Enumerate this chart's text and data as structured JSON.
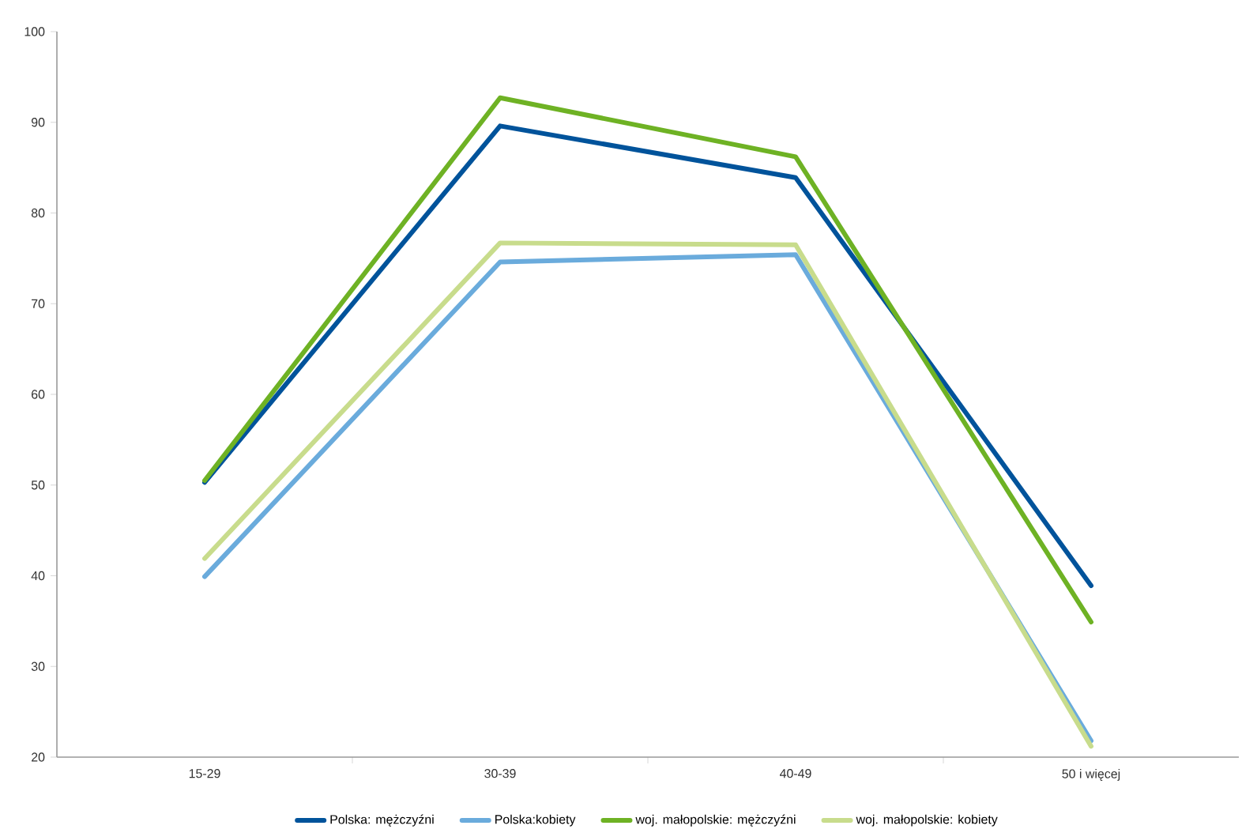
{
  "chart_data": {
    "type": "line",
    "categories": [
      "15-29",
      "30-39",
      "40-49",
      "50 i więcej"
    ],
    "series": [
      {
        "name": "Polska: mężczyźni",
        "color": "#00539b",
        "values": [
          50.3,
          89.6,
          83.9,
          38.9
        ]
      },
      {
        "name": "Polska:kobiety",
        "color": "#6aabdc",
        "values": [
          39.9,
          74.6,
          75.4,
          21.8
        ]
      },
      {
        "name": "woj. małopolskie: mężczyźni",
        "color": "#6eb224",
        "values": [
          50.5,
          92.7,
          86.2,
          34.9
        ]
      },
      {
        "name": "woj. małopolskie: kobiety",
        "color": "#c8dc8c",
        "values": [
          41.9,
          76.7,
          76.5,
          21.2
        ]
      }
    ],
    "ylim": [
      20,
      100
    ],
    "yticks": [
      20,
      30,
      40,
      50,
      60,
      70,
      80,
      90,
      100
    ],
    "grid": false,
    "legend": "bottom",
    "marker": "none",
    "line_style": "solid"
  }
}
